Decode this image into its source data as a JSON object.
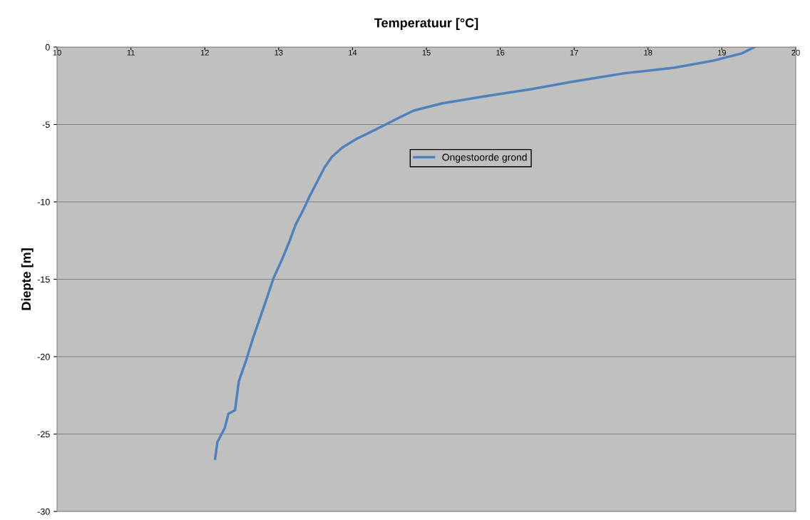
{
  "chart_data": {
    "type": "line",
    "xlabel": "Temperatuur [°C]",
    "ylabel": "Diepte [m]",
    "xlim": [
      10,
      20
    ],
    "xticks": [
      10,
      11,
      12,
      13,
      14,
      15,
      16,
      17,
      18,
      19,
      20
    ],
    "ylim": [
      -30,
      0
    ],
    "yticks": [
      -30,
      -25,
      -20,
      -15,
      -10,
      -5,
      0
    ],
    "grid": "y",
    "legend": "top",
    "marker": "none",
    "line_style": "solid",
    "series": [
      {
        "name": "Ongestoorde grond",
        "color": "#4f81bd",
        "x": [
          19.44,
          19.27,
          18.88,
          18.35,
          17.67,
          16.95,
          16.42,
          15.79,
          15.21,
          14.83,
          14.63,
          14.44,
          14.25,
          14.05,
          13.86,
          13.72,
          13.62,
          13.52,
          13.42,
          13.33,
          13.23,
          13.14,
          13.04,
          12.93,
          12.85,
          12.75,
          12.65,
          12.56,
          12.46,
          12.41,
          12.32,
          12.27,
          12.17,
          12.14
        ],
        "values": [
          0,
          -0.41,
          -0.88,
          -1.34,
          -1.7,
          -2.26,
          -2.72,
          -3.18,
          -3.64,
          -4.1,
          -4.56,
          -5.02,
          -5.48,
          -5.94,
          -6.5,
          -7.1,
          -7.79,
          -8.71,
          -9.63,
          -10.55,
          -11.47,
          -12.63,
          -13.78,
          -14.93,
          -16.08,
          -17.47,
          -18.85,
          -20.23,
          -21.61,
          -23.46,
          -23.69,
          -24.61,
          -25.53,
          -26.59
        ]
      }
    ]
  }
}
